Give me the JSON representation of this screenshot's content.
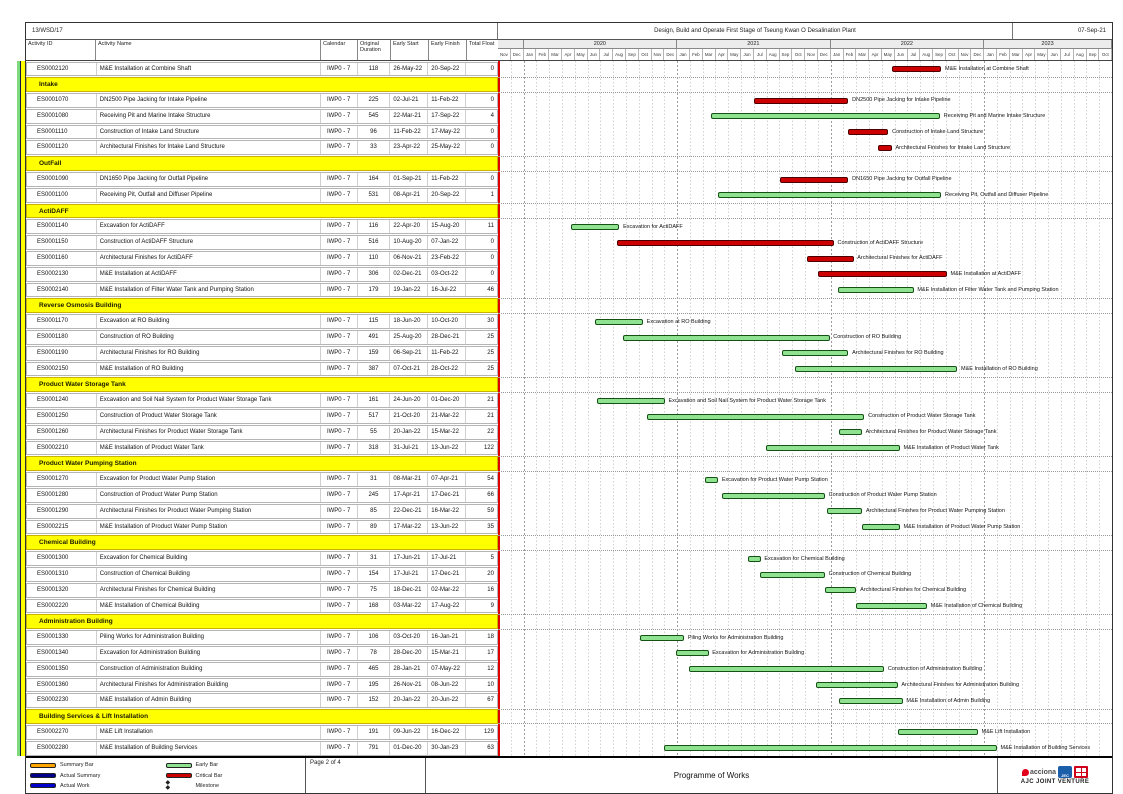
{
  "report": {
    "contract_no": "13/WSD/17",
    "title": "Design, Build and Operate First Stage of Tseung Kwan O Desalination Plant",
    "date": "07-Sep-21"
  },
  "columns": {
    "activity_id": "Activity ID",
    "activity_name": "Activity Name",
    "calendar": "Calendar",
    "original_duration": "Original Duration",
    "early_start": "Early Start",
    "early_finish": "Early Finish",
    "total_float": "Total Float"
  },
  "colors": {
    "summary_bar": "#FFA500",
    "actual_summary": "#00008B",
    "actual_work": "#0000CD",
    "early": "#8FE28F",
    "critical": "#CC0000",
    "section_bg": "#FFFF00",
    "data_line": "#E00000"
  },
  "chart_data": {
    "type": "gantt",
    "timeline": {
      "start": "01-Nov-19",
      "end": "31-Oct-23",
      "years": [
        {
          "label": "",
          "months": 2
        },
        {
          "label": "2020",
          "months": 12
        },
        {
          "label": "2021",
          "months": 12
        },
        {
          "label": "2022",
          "months": 12
        },
        {
          "label": "2023",
          "months": 10
        }
      ],
      "months": [
        "Nov",
        "Dec",
        "Jan",
        "Feb",
        "Mar",
        "Apr",
        "May",
        "Jun",
        "Jul",
        "Aug",
        "Sep",
        "Oct",
        "Nov",
        "Dec",
        "Jan",
        "Feb",
        "Mar",
        "Apr",
        "May",
        "Jun",
        "Jul",
        "Aug",
        "Sep",
        "Oct",
        "Nov",
        "Dec",
        "Jan",
        "Feb",
        "Mar",
        "Apr",
        "May",
        "Jun",
        "Jul",
        "Aug",
        "Sep",
        "Oct",
        "Nov",
        "Dec",
        "Jan",
        "Feb",
        "Mar",
        "Apr",
        "May",
        "Jun",
        "Jul",
        "Aug",
        "Sep",
        "Oct"
      ]
    },
    "sections": [
      {
        "title": "",
        "activities": [
          {
            "id": "ES0002120",
            "name": "M&E Installation at Combine Shaft",
            "calendar": "IWP0 - 7",
            "duration": "118",
            "start": "26-May-22",
            "finish": "20-Sep-22",
            "float": "0",
            "bar": "critical"
          }
        ]
      },
      {
        "title": "Intake",
        "activities": [
          {
            "id": "ES0001070",
            "name": "DN2500 Pipe Jacking for Intake Pipeline",
            "calendar": "IWP0 - 7",
            "duration": "225",
            "start": "02-Jul-21",
            "finish": "11-Feb-22",
            "float": "0",
            "bar": "critical"
          },
          {
            "id": "ES0001080",
            "name": "Receiving Pit and Marine Intake Structure",
            "calendar": "IWP0 - 7",
            "duration": "545",
            "start": "22-Mar-21",
            "finish": "17-Sep-22",
            "float": "4",
            "bar": "early"
          },
          {
            "id": "ES0001110",
            "name": "Construction of Intake Land Structure",
            "calendar": "IWP0 - 7",
            "duration": "96",
            "start": "11-Feb-22",
            "finish": "17-May-22",
            "float": "0",
            "bar": "critical"
          },
          {
            "id": "ES0001120",
            "name": "Architectural Finishes for Intake Land Structure",
            "calendar": "IWP0 - 7",
            "duration": "33",
            "start": "23-Apr-22",
            "finish": "25-May-22",
            "float": "0",
            "bar": "critical"
          }
        ]
      },
      {
        "title": "OutFall",
        "activities": [
          {
            "id": "ES0001090",
            "name": "DN1650 Pipe Jacking for Outfall Pipeline",
            "calendar": "IWP0 - 7",
            "duration": "164",
            "start": "01-Sep-21",
            "finish": "11-Feb-22",
            "float": "0",
            "bar": "critical"
          },
          {
            "id": "ES0001100",
            "name": "Receiving Pit, Outfall and Diffuser Pipeline",
            "calendar": "IWP0 - 7",
            "duration": "531",
            "start": "08-Apr-21",
            "finish": "20-Sep-22",
            "float": "1",
            "bar": "early"
          }
        ]
      },
      {
        "title": "ActiDAFF",
        "activities": [
          {
            "id": "ES0001140",
            "name": "Excavation for ActiDAFF",
            "calendar": "IWP0 - 7",
            "duration": "116",
            "start": "22-Apr-20",
            "finish": "15-Aug-20",
            "float": "11",
            "bar": "early"
          },
          {
            "id": "ES0001150",
            "name": "Construction of ActiDAFF Structure",
            "calendar": "IWP0 - 7",
            "duration": "516",
            "start": "10-Aug-20",
            "finish": "07-Jan-22",
            "float": "0",
            "bar": "critical"
          },
          {
            "id": "ES0001160",
            "name": "Architectural Finishes for ActiDAFF",
            "calendar": "IWP0 - 7",
            "duration": "110",
            "start": "06-Nov-21",
            "finish": "23-Feb-22",
            "float": "0",
            "bar": "critical"
          },
          {
            "id": "ES0002130",
            "name": "M&E Installation at ActiDAFF",
            "calendar": "IWP0 - 7",
            "duration": "306",
            "start": "02-Dec-21",
            "finish": "03-Oct-22",
            "float": "0",
            "bar": "critical"
          },
          {
            "id": "ES0002140",
            "name": "M&E Installation of Filter Water Tank and Pumping Station",
            "calendar": "IWP0 - 7",
            "duration": "179",
            "start": "19-Jan-22",
            "finish": "16-Jul-22",
            "float": "46",
            "bar": "early"
          }
        ]
      },
      {
        "title": "Reverse Osmosis Building",
        "activities": [
          {
            "id": "ES0001170",
            "name": "Excavation at RO Building",
            "calendar": "IWP0 - 7",
            "duration": "115",
            "start": "18-Jun-20",
            "finish": "10-Oct-20",
            "float": "30",
            "bar": "early"
          },
          {
            "id": "ES0001180",
            "name": "Construction of RO Building",
            "calendar": "IWP0 - 7",
            "duration": "491",
            "start": "25-Aug-20",
            "finish": "28-Dec-21",
            "float": "25",
            "bar": "early"
          },
          {
            "id": "ES0001190",
            "name": "Architectural Finishes for RO Building",
            "calendar": "IWP0 - 7",
            "duration": "159",
            "start": "06-Sep-21",
            "finish": "11-Feb-22",
            "float": "25",
            "bar": "early"
          },
          {
            "id": "ES0002150",
            "name": "M&E Installation of RO Building",
            "calendar": "IWP0 - 7",
            "duration": "387",
            "start": "07-Oct-21",
            "finish": "28-Oct-22",
            "float": "25",
            "bar": "early"
          }
        ]
      },
      {
        "title": "Product Water Storage Tank",
        "activities": [
          {
            "id": "ES0001240",
            "name": "Excavation and Soil Nail System for Product Water Storage Tank",
            "calendar": "IWP0 - 7",
            "duration": "161",
            "start": "24-Jun-20",
            "finish": "01-Dec-20",
            "float": "21",
            "bar": "early"
          },
          {
            "id": "ES0001250",
            "name": "Construction of Product Water Storage Tank",
            "calendar": "IWP0 - 7",
            "duration": "517",
            "start": "21-Oct-20",
            "finish": "21-Mar-22",
            "float": "21",
            "bar": "early"
          },
          {
            "id": "ES0001260",
            "name": "Architectural Finishes for Product Water Storage Tank",
            "calendar": "IWP0 - 7",
            "duration": "55",
            "start": "20-Jan-22",
            "finish": "15-Mar-22",
            "float": "22",
            "bar": "early"
          },
          {
            "id": "ES0002210",
            "name": "M&E Installation of Product Water Tank",
            "calendar": "IWP0 - 7",
            "duration": "318",
            "start": "31-Jul-21",
            "finish": "13-Jun-22",
            "float": "122",
            "bar": "early"
          }
        ]
      },
      {
        "title": "Product Water Pumping Station",
        "activities": [
          {
            "id": "ES0001270",
            "name": "Excavation for Product Water Pump Station",
            "calendar": "IWP0 - 7",
            "duration": "31",
            "start": "08-Mar-21",
            "finish": "07-Apr-21",
            "float": "54",
            "bar": "early"
          },
          {
            "id": "ES0001280",
            "name": "Construction of Product Water Pump Station",
            "calendar": "IWP0 - 7",
            "duration": "245",
            "start": "17-Apr-21",
            "finish": "17-Dec-21",
            "float": "66",
            "bar": "early"
          },
          {
            "id": "ES0001290",
            "name": "Architectural Finishes for Product Water Pumping Station",
            "calendar": "IWP0 - 7",
            "duration": "85",
            "start": "22-Dec-21",
            "finish": "16-Mar-22",
            "float": "59",
            "bar": "early"
          },
          {
            "id": "ES0002215",
            "name": "M&E Installation of Product Water Pump Station",
            "calendar": "IWP0 - 7",
            "duration": "89",
            "start": "17-Mar-22",
            "finish": "13-Jun-22",
            "float": "35",
            "bar": "early"
          }
        ]
      },
      {
        "title": "Chemical Building",
        "activities": [
          {
            "id": "ES0001300",
            "name": "Excavation for Chemical Building",
            "calendar": "IWP0 - 7",
            "duration": "31",
            "start": "17-Jun-21",
            "finish": "17-Jul-21",
            "float": "5",
            "bar": "early"
          },
          {
            "id": "ES0001310",
            "name": "Construction of Chemical Building",
            "calendar": "IWP0 - 7",
            "duration": "154",
            "start": "17-Jul-21",
            "finish": "17-Dec-21",
            "float": "20",
            "bar": "early"
          },
          {
            "id": "ES0001320",
            "name": "Architectural Finishes for Chemical Building",
            "calendar": "IWP0 - 7",
            "duration": "75",
            "start": "18-Dec-21",
            "finish": "02-Mar-22",
            "float": "16",
            "bar": "early"
          },
          {
            "id": "ES0002220",
            "name": "M&E Installation of Chemical Building",
            "calendar": "IWP0 - 7",
            "duration": "168",
            "start": "03-Mar-22",
            "finish": "17-Aug-22",
            "float": "9",
            "bar": "early"
          }
        ]
      },
      {
        "title": "Administration Building",
        "activities": [
          {
            "id": "ES0001330",
            "name": "Piling Works for Administration Building",
            "calendar": "IWP0 - 7",
            "duration": "106",
            "start": "03-Oct-20",
            "finish": "16-Jan-21",
            "float": "18",
            "bar": "early"
          },
          {
            "id": "ES0001340",
            "name": "Excavation for Administration Building",
            "calendar": "IWP0 - 7",
            "duration": "78",
            "start": "28-Dec-20",
            "finish": "15-Mar-21",
            "float": "17",
            "bar": "early"
          },
          {
            "id": "ES0001350",
            "name": "Construction of Administration Building",
            "calendar": "IWP0 - 7",
            "duration": "465",
            "start": "28-Jan-21",
            "finish": "07-May-22",
            "float": "12",
            "bar": "early"
          },
          {
            "id": "ES0001360",
            "name": "Architectural Finishes for Administration Building",
            "calendar": "IWP0 - 7",
            "duration": "195",
            "start": "26-Nov-21",
            "finish": "08-Jun-22",
            "float": "10",
            "bar": "early"
          },
          {
            "id": "ES0002230",
            "name": "M&E Installation of Admin Building",
            "calendar": "IWP0 - 7",
            "duration": "152",
            "start": "20-Jan-22",
            "finish": "20-Jun-22",
            "float": "67",
            "bar": "early"
          }
        ]
      },
      {
        "title": "Building Services & Lift Installation",
        "activities": [
          {
            "id": "ES0002270",
            "name": "M&E Lift Installation",
            "calendar": "IWP0 - 7",
            "duration": "191",
            "start": "09-Jun-22",
            "finish": "16-Dec-22",
            "float": "129",
            "bar": "early"
          },
          {
            "id": "ES0002280",
            "name": "M&E Installation of Building Services",
            "calendar": "IWP0 - 7",
            "duration": "791",
            "start": "01-Dec-20",
            "finish": "30-Jan-23",
            "float": "63",
            "bar": "early"
          }
        ]
      }
    ]
  },
  "footer": {
    "legend": [
      {
        "key": "summary_bar",
        "label": "Summary Bar"
      },
      {
        "key": "actual_summary",
        "label": "Actual Summary"
      },
      {
        "key": "actual_work",
        "label": "Actual Work"
      },
      {
        "key": "early",
        "label": "Early Bar"
      },
      {
        "key": "critical",
        "label": "Critical Bar"
      },
      {
        "key": "milestone",
        "label": "Milestone"
      }
    ],
    "milestone_glyph": "◆ ◆",
    "page_label": "Page 2 of 4",
    "programme": "Programme of Works",
    "logos": {
      "acciona": "acciona",
      "jec": "JEC"
    },
    "venture": "AJC JOINT VENTURE"
  }
}
